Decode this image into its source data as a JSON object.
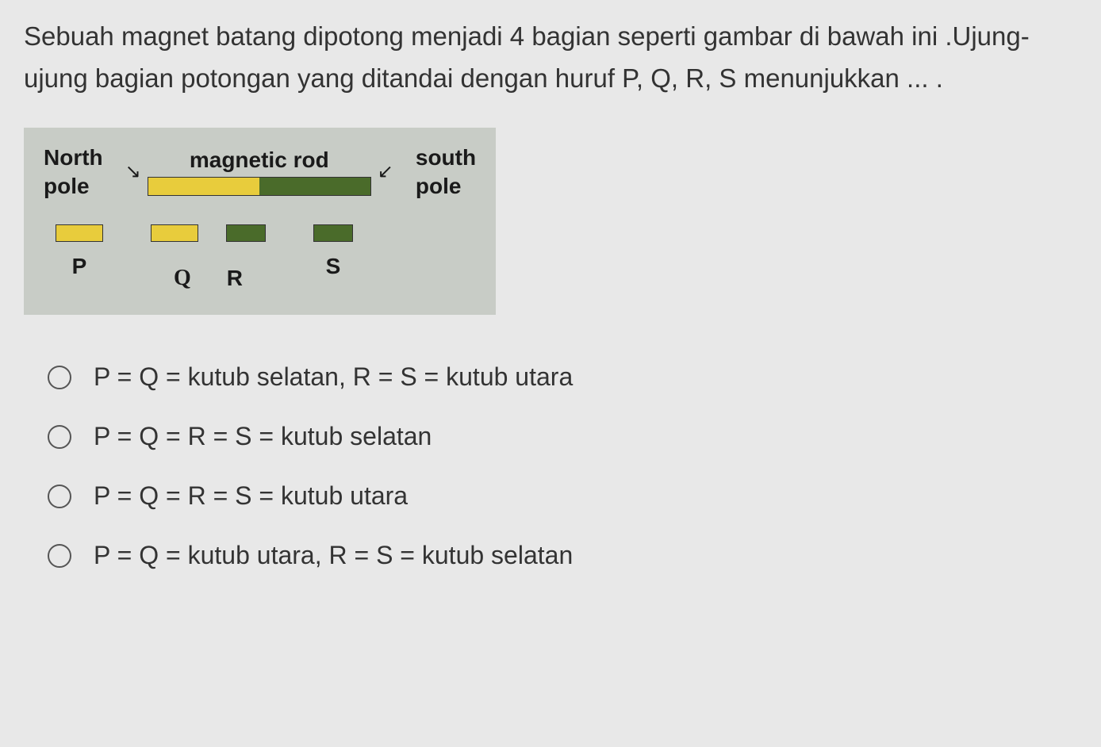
{
  "question": {
    "text": "Sebuah magnet batang dipotong menjadi 4 bagian seperti gambar di bawah ini .Ujung-ujung bagian potongan yang ditandai dengan  huruf  P, Q, R, S  menunjukkan  ... ."
  },
  "diagram": {
    "north_label_line1": "North",
    "north_label_line2": "pole",
    "south_label_line1": "south",
    "south_label_line2": "pole",
    "rod_label": "magnetic rod",
    "piece_labels": {
      "p": "P",
      "q": "Q",
      "r": "R",
      "s": "S"
    },
    "colors": {
      "yellow": "#e8cc3c",
      "green": "#4a6b2a",
      "diagram_bg": "#c8ccc6"
    }
  },
  "options": {
    "a": "P = Q = kutub selatan, R = S = kutub utara",
    "b": "P = Q = R = S = kutub selatan",
    "c": "P = Q = R = S = kutub utara",
    "d": "P = Q = kutub utara, R = S = kutub selatan"
  }
}
